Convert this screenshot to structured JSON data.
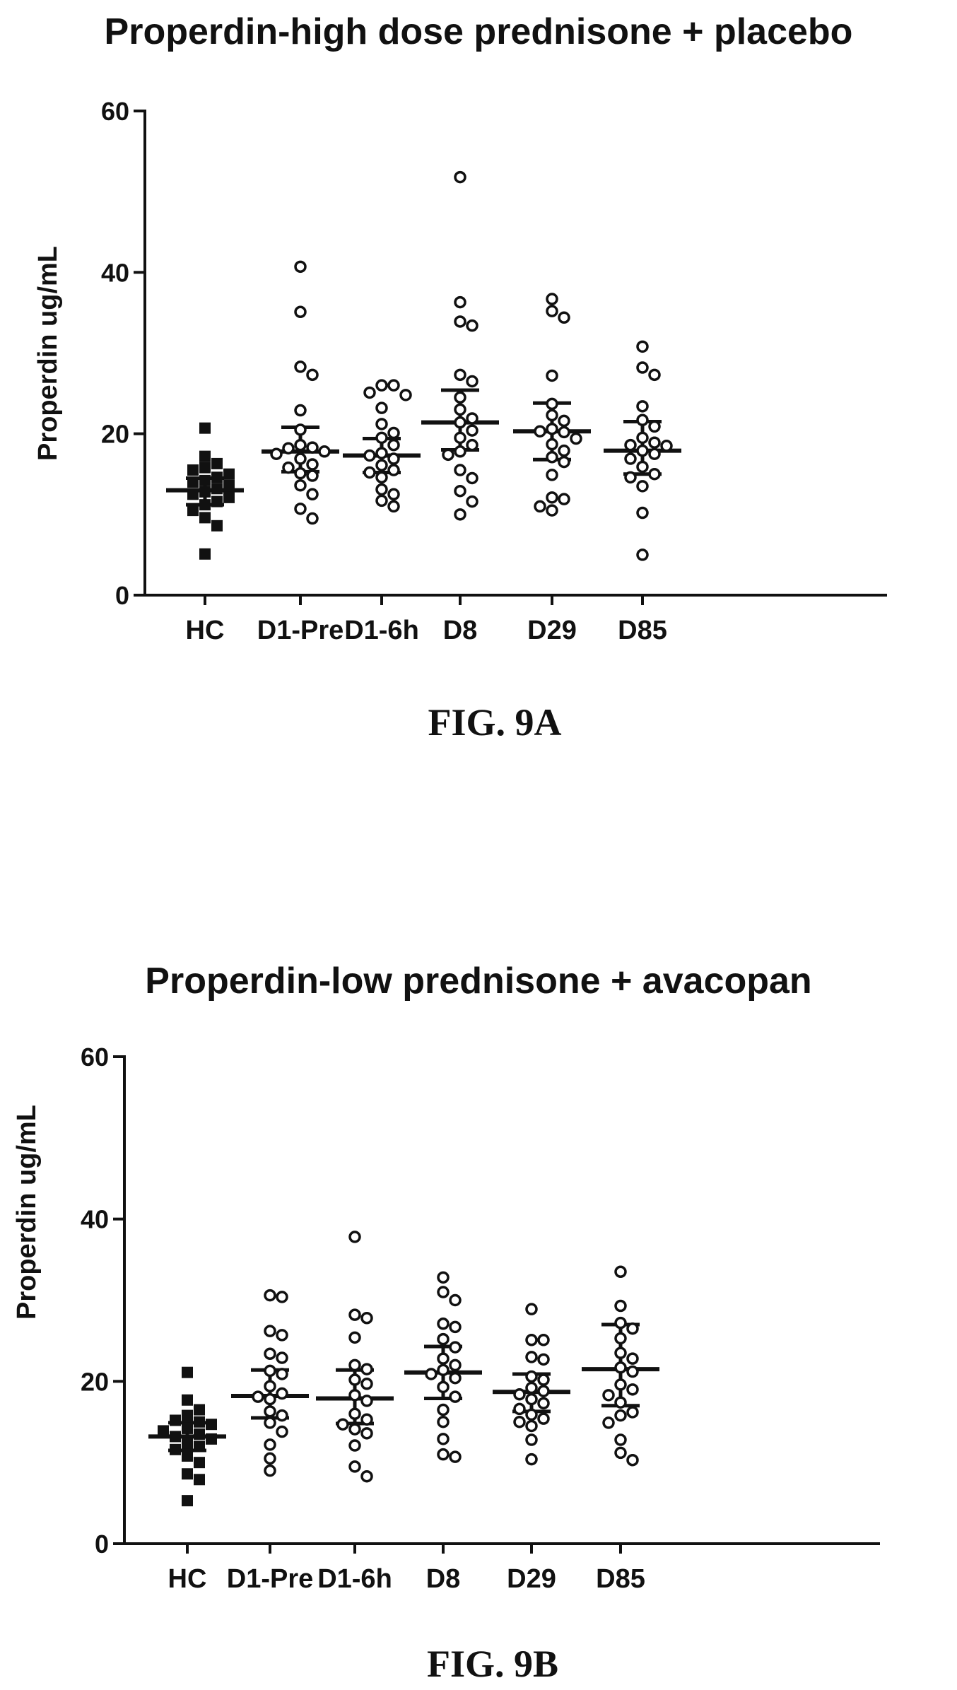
{
  "chart_data": [
    {
      "type": "scatter",
      "title": "Properdin-high dose prednisone + placebo",
      "caption": "FIG. 9A",
      "ylabel": "Properdin ug/mL",
      "ylim": [
        0,
        60
      ],
      "yticks": [
        0,
        20,
        40,
        60
      ],
      "categories": [
        "HC",
        "D1-Pre",
        "D1-6h",
        "D8",
        "D29",
        "D85"
      ],
      "markers": [
        "square",
        "circle",
        "circle",
        "circle",
        "circle",
        "circle"
      ],
      "summary": [
        {
          "median": 13.0,
          "q1": 11.2,
          "q3": 14.5
        },
        {
          "median": 17.8,
          "q1": 15.3,
          "q3": 20.8
        },
        {
          "median": 17.3,
          "q1": 15.2,
          "q3": 19.4
        },
        {
          "median": 21.4,
          "q1": 18.0,
          "q3": 25.4
        },
        {
          "median": 20.3,
          "q1": 16.8,
          "q3": 23.8
        },
        {
          "median": 17.9,
          "q1": 15.0,
          "q3": 21.5
        }
      ],
      "points": [
        [
          20.7,
          17.2,
          16.3,
          15.8,
          15.5,
          15.0,
          14.6,
          14.2,
          14.0,
          13.6,
          13.2,
          12.8,
          12.5,
          12.1,
          11.6,
          11.2,
          10.5,
          9.6,
          8.6,
          5.1
        ],
        [
          40.7,
          35.1,
          28.3,
          27.3,
          22.9,
          20.5,
          18.6,
          18.3,
          18.2,
          17.8,
          17.5,
          16.9,
          16.2,
          15.8,
          15.1,
          14.8,
          13.6,
          12.5,
          10.7,
          9.5
        ],
        [
          26.0,
          26.0,
          25.1,
          24.8,
          23.2,
          21.2,
          20.1,
          19.5,
          18.6,
          17.6,
          17.3,
          16.9,
          16.1,
          15.5,
          15.2,
          14.6,
          13.1,
          12.5,
          11.7,
          11.0
        ],
        [
          51.8,
          36.3,
          33.9,
          33.4,
          27.3,
          26.5,
          24.5,
          23.0,
          21.9,
          21.4,
          20.4,
          19.5,
          18.6,
          17.8,
          17.4,
          15.5,
          14.5,
          12.9,
          11.6,
          10.0
        ],
        [
          36.7,
          35.2,
          34.4,
          27.2,
          23.7,
          22.3,
          21.6,
          20.6,
          20.3,
          20.2,
          19.4,
          18.7,
          17.9,
          17.1,
          16.5,
          14.9,
          12.1,
          11.9,
          11.0,
          10.5
        ],
        [
          30.8,
          28.2,
          27.3,
          23.4,
          21.7,
          20.9,
          19.5,
          18.9,
          18.6,
          18.5,
          17.9,
          17.5,
          16.9,
          15.9,
          15.0,
          14.6,
          13.5,
          10.2,
          5.0
        ]
      ]
    },
    {
      "type": "scatter",
      "title": "Properdin-low prednisone + avacopan",
      "caption": "FIG. 9B",
      "ylabel": "Properdin ug/mL",
      "ylim": [
        0,
        60
      ],
      "yticks": [
        0,
        20,
        40,
        60
      ],
      "categories": [
        "HC",
        "D1-Pre",
        "D1-6h",
        "D8",
        "D29",
        "D85"
      ],
      "markers": [
        "square",
        "circle",
        "circle",
        "circle",
        "circle",
        "circle"
      ],
      "summary": [
        {
          "median": 13.2,
          "q1": 11.5,
          "q3": 14.9
        },
        {
          "median": 18.2,
          "q1": 15.5,
          "q3": 21.4
        },
        {
          "median": 17.9,
          "q1": 14.8,
          "q3": 21.4
        },
        {
          "median": 21.1,
          "q1": 17.9,
          "q3": 24.3
        },
        {
          "median": 18.7,
          "q1": 16.3,
          "q3": 20.9
        },
        {
          "median": 21.5,
          "q1": 17.0,
          "q3": 27.0
        }
      ],
      "points": [
        [
          21.1,
          17.7,
          16.5,
          15.8,
          15.2,
          15.0,
          14.7,
          14.2,
          13.9,
          13.5,
          13.2,
          12.9,
          12.4,
          12.0,
          11.6,
          10.8,
          10.0,
          8.6,
          7.9,
          5.3
        ],
        [
          30.6,
          30.4,
          26.2,
          25.7,
          23.4,
          22.9,
          21.3,
          20.9,
          19.4,
          18.5,
          18.1,
          17.8,
          16.3,
          15.8,
          14.9,
          13.8,
          12.2,
          10.5,
          9.0
        ],
        [
          37.8,
          28.2,
          27.8,
          25.4,
          22.0,
          21.5,
          20.2,
          19.7,
          18.3,
          17.6,
          16.0,
          15.3,
          14.7,
          14.1,
          13.6,
          12.1,
          9.5,
          8.3
        ],
        [
          32.8,
          31.0,
          30.0,
          27.1,
          26.7,
          25.2,
          24.2,
          22.8,
          22.0,
          21.4,
          20.9,
          20.4,
          19.3,
          18.1,
          16.5,
          15.0,
          12.9,
          11.0,
          10.7
        ],
        [
          28.9,
          25.1,
          25.1,
          23.0,
          22.7,
          20.6,
          20.2,
          19.2,
          18.8,
          18.4,
          17.8,
          17.3,
          16.6,
          15.9,
          15.4,
          15.0,
          14.5,
          12.8,
          10.4
        ],
        [
          33.5,
          29.3,
          27.2,
          26.5,
          25.3,
          23.5,
          22.8,
          21.7,
          21.2,
          19.6,
          19.0,
          18.3,
          17.4,
          16.2,
          15.8,
          14.9,
          12.8,
          11.2,
          10.3
        ]
      ]
    }
  ]
}
